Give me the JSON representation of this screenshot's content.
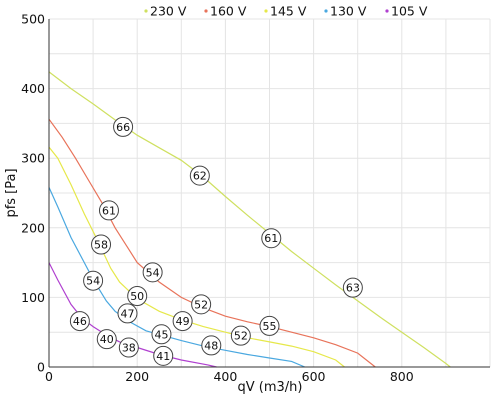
{
  "chart_data": {
    "type": "line",
    "title": "",
    "xlabel": "qV (m3/h)",
    "ylabel": "pfs [Pa]",
    "xlim": [
      0,
      1000
    ],
    "ylim": [
      0,
      500
    ],
    "x_ticks": [
      0,
      200,
      400,
      600,
      800
    ],
    "y_ticks": [
      0,
      100,
      200,
      300,
      400,
      500
    ],
    "x_tick_labels": [
      "0",
      "200",
      "400",
      "600",
      "800"
    ],
    "y_tick_labels": [
      "0",
      "100",
      "200",
      "300",
      "400",
      "500"
    ],
    "grid": true,
    "legend_position": "top",
    "series": [
      {
        "name": "230 V",
        "color": "#cfe060",
        "points": [
          [
            0,
            424
          ],
          [
            50,
            400
          ],
          [
            100,
            378
          ],
          [
            150,
            355
          ],
          [
            200,
            333
          ],
          [
            250,
            315
          ],
          [
            300,
            297
          ],
          [
            350,
            273
          ],
          [
            400,
            245
          ],
          [
            450,
            218
          ],
          [
            500,
            192
          ],
          [
            550,
            166
          ],
          [
            600,
            142
          ],
          [
            650,
            118
          ],
          [
            700,
            95
          ],
          [
            750,
            72
          ],
          [
            800,
            50
          ],
          [
            850,
            28
          ],
          [
            900,
            5
          ],
          [
            910,
            0
          ]
        ]
      },
      {
        "name": "160 V",
        "color": "#e8735a",
        "points": [
          [
            0,
            356
          ],
          [
            30,
            330
          ],
          [
            60,
            300
          ],
          [
            90,
            268
          ],
          [
            120,
            236
          ],
          [
            150,
            200
          ],
          [
            180,
            170
          ],
          [
            200,
            150
          ],
          [
            250,
            122
          ],
          [
            300,
            100
          ],
          [
            350,
            85
          ],
          [
            400,
            73
          ],
          [
            450,
            65
          ],
          [
            500,
            58
          ],
          [
            550,
            50
          ],
          [
            600,
            42
          ],
          [
            650,
            32
          ],
          [
            700,
            20
          ],
          [
            740,
            0
          ]
        ]
      },
      {
        "name": "145 V",
        "color": "#e6e84a",
        "points": [
          [
            0,
            316
          ],
          [
            20,
            300
          ],
          [
            50,
            262
          ],
          [
            80,
            220
          ],
          [
            110,
            182
          ],
          [
            140,
            142
          ],
          [
            160,
            122
          ],
          [
            200,
            98
          ],
          [
            250,
            80
          ],
          [
            300,
            68
          ],
          [
            350,
            58
          ],
          [
            400,
            50
          ],
          [
            450,
            42
          ],
          [
            500,
            36
          ],
          [
            550,
            30
          ],
          [
            600,
            22
          ],
          [
            650,
            10
          ],
          [
            670,
            0
          ]
        ]
      },
      {
        "name": "130 V",
        "color": "#4aa8e0",
        "points": [
          [
            0,
            258
          ],
          [
            20,
            230
          ],
          [
            50,
            186
          ],
          [
            80,
            150
          ],
          [
            100,
            126
          ],
          [
            130,
            95
          ],
          [
            150,
            80
          ],
          [
            180,
            66
          ],
          [
            220,
            52
          ],
          [
            260,
            45
          ],
          [
            300,
            38
          ],
          [
            350,
            30
          ],
          [
            400,
            24
          ],
          [
            450,
            18
          ],
          [
            500,
            13
          ],
          [
            550,
            8
          ],
          [
            580,
            0
          ]
        ]
      },
      {
        "name": "105 V",
        "color": "#b040d0",
        "points": [
          [
            0,
            150
          ],
          [
            20,
            125
          ],
          [
            50,
            90
          ],
          [
            75,
            70
          ],
          [
            100,
            58
          ],
          [
            130,
            46
          ],
          [
            160,
            36
          ],
          [
            200,
            28
          ],
          [
            250,
            18
          ],
          [
            300,
            10
          ],
          [
            360,
            3
          ],
          [
            380,
            0
          ]
        ]
      }
    ],
    "annotations": [
      {
        "text": "66",
        "x": 168,
        "y": 345
      },
      {
        "text": "62",
        "x": 342,
        "y": 275
      },
      {
        "text": "61",
        "x": 504,
        "y": 185
      },
      {
        "text": "63",
        "x": 689,
        "y": 114
      },
      {
        "text": "61",
        "x": 136,
        "y": 225
      },
      {
        "text": "58",
        "x": 118,
        "y": 176
      },
      {
        "text": "54",
        "x": 235,
        "y": 136
      },
      {
        "text": "54",
        "x": 100,
        "y": 124
      },
      {
        "text": "52",
        "x": 345,
        "y": 90
      },
      {
        "text": "55",
        "x": 500,
        "y": 59
      },
      {
        "text": "50",
        "x": 200,
        "y": 102
      },
      {
        "text": "47",
        "x": 178,
        "y": 77
      },
      {
        "text": "49",
        "x": 303,
        "y": 66
      },
      {
        "text": "52",
        "x": 435,
        "y": 45
      },
      {
        "text": "46",
        "x": 70,
        "y": 66
      },
      {
        "text": "45",
        "x": 255,
        "y": 47
      },
      {
        "text": "48",
        "x": 368,
        "y": 31
      },
      {
        "text": "40",
        "x": 131,
        "y": 40
      },
      {
        "text": "38",
        "x": 181,
        "y": 28
      },
      {
        "text": "41",
        "x": 259,
        "y": 16
      }
    ]
  }
}
